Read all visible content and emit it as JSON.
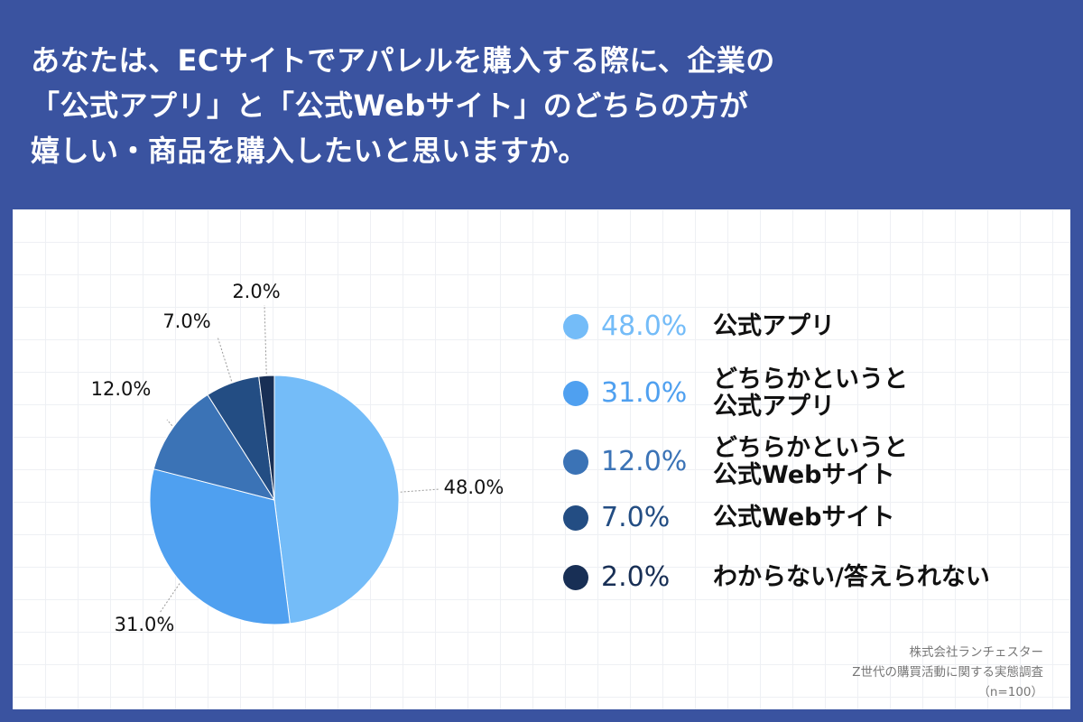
{
  "title_lines": [
    "あなたは、ECサイトでアパレルを購入する際に、企業の",
    "「公式アプリ」と「公式Webサイト」のどちらの方が",
    "嬉しい・商品を購入したいと思いますか。"
  ],
  "colors": {
    "background": "#3a53a0",
    "slice_1": "#74bcf8",
    "slice_2": "#4fa0f0",
    "slice_3": "#3b73b6",
    "slice_4": "#234d83",
    "slice_5": "#182f55"
  },
  "chart_data": {
    "type": "pie",
    "categories": [
      "公式アプリ",
      "どちらかというと公式アプリ",
      "どちらかというと公式Webサイト",
      "公式Webサイト",
      "わからない/答えられない"
    ],
    "values": [
      48.0,
      31.0,
      12.0,
      7.0,
      2.0
    ],
    "data_labels": [
      "48.0%",
      "31.0%",
      "12.0%",
      "7.0%",
      "2.0%"
    ],
    "start": "12 o'clock",
    "direction": "clockwise",
    "legend_placement": "right"
  },
  "legend": [
    {
      "pct": "48.0%",
      "lines": [
        "公式アプリ"
      ]
    },
    {
      "pct": "31.0%",
      "lines": [
        "どちらかというと",
        "公式アプリ"
      ]
    },
    {
      "pct": "12.0%",
      "lines": [
        "どちらかというと",
        "公式Webサイト"
      ]
    },
    {
      "pct": "7.0%",
      "lines": [
        "公式Webサイト"
      ]
    },
    {
      "pct": "2.0%",
      "lines": [
        "わからない/答えられない"
      ]
    }
  ],
  "source": {
    "company": "株式会社ランチェスター",
    "survey": "Z世代の購買活動に関する実態調査",
    "sample": "（n=100）"
  }
}
